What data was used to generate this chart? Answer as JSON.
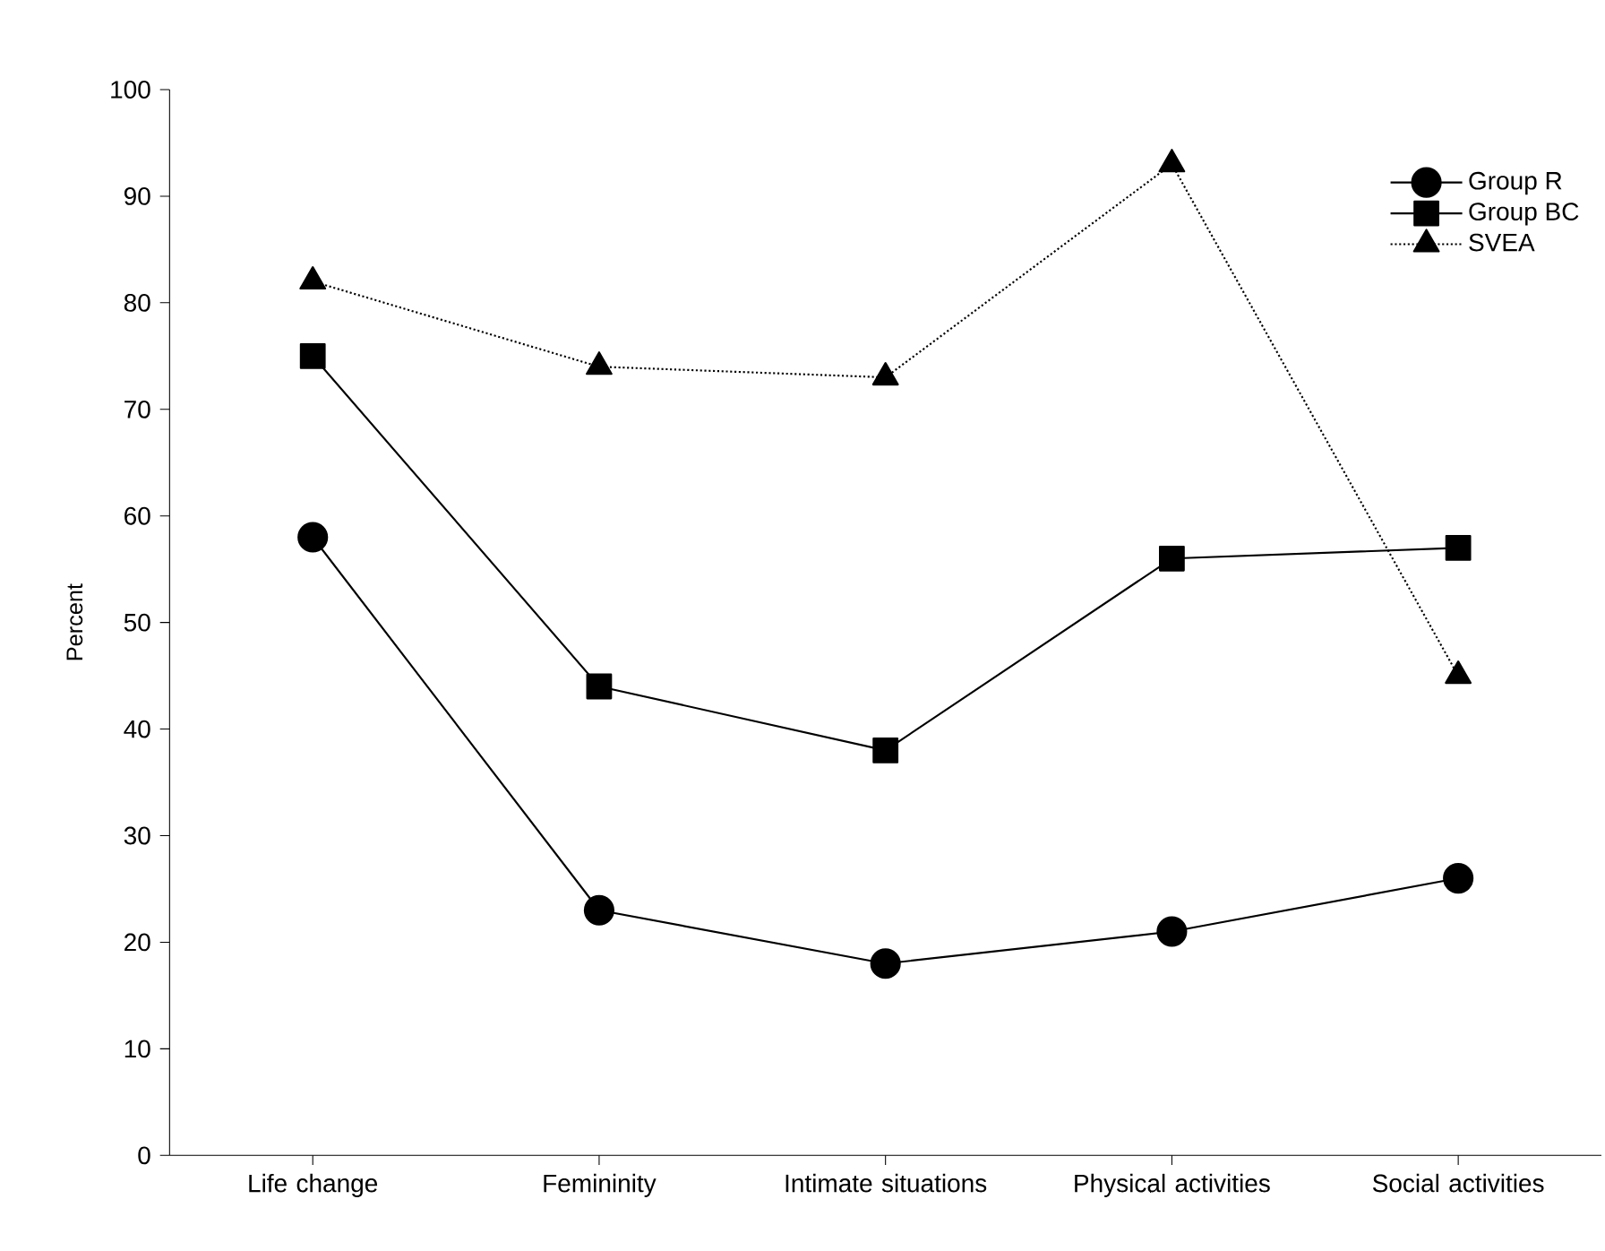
{
  "chart_data": {
    "type": "line",
    "ylabel": "Percent",
    "categories": [
      "Life change",
      "Femininity",
      "Intimate situations",
      "Physical activities",
      "Social activities"
    ],
    "series": [
      {
        "name": "Group R",
        "color": "#000000",
        "marker": "circle",
        "line_style": "solid",
        "values": [
          58,
          23,
          18,
          21,
          26
        ]
      },
      {
        "name": "Group BC",
        "color": "#000000",
        "marker": "square",
        "line_style": "solid",
        "values": [
          75,
          44,
          38,
          56,
          57
        ]
      },
      {
        "name": "SVEA",
        "color": "#000000",
        "marker": "triangle",
        "line_style": "dotted",
        "values": [
          82,
          74,
          73,
          93,
          45
        ]
      }
    ],
    "ylim": [
      0,
      100
    ],
    "yticks": [
      0,
      10,
      20,
      30,
      40,
      50,
      60,
      70,
      80,
      90,
      100
    ],
    "grid": false,
    "legend": "top right"
  }
}
